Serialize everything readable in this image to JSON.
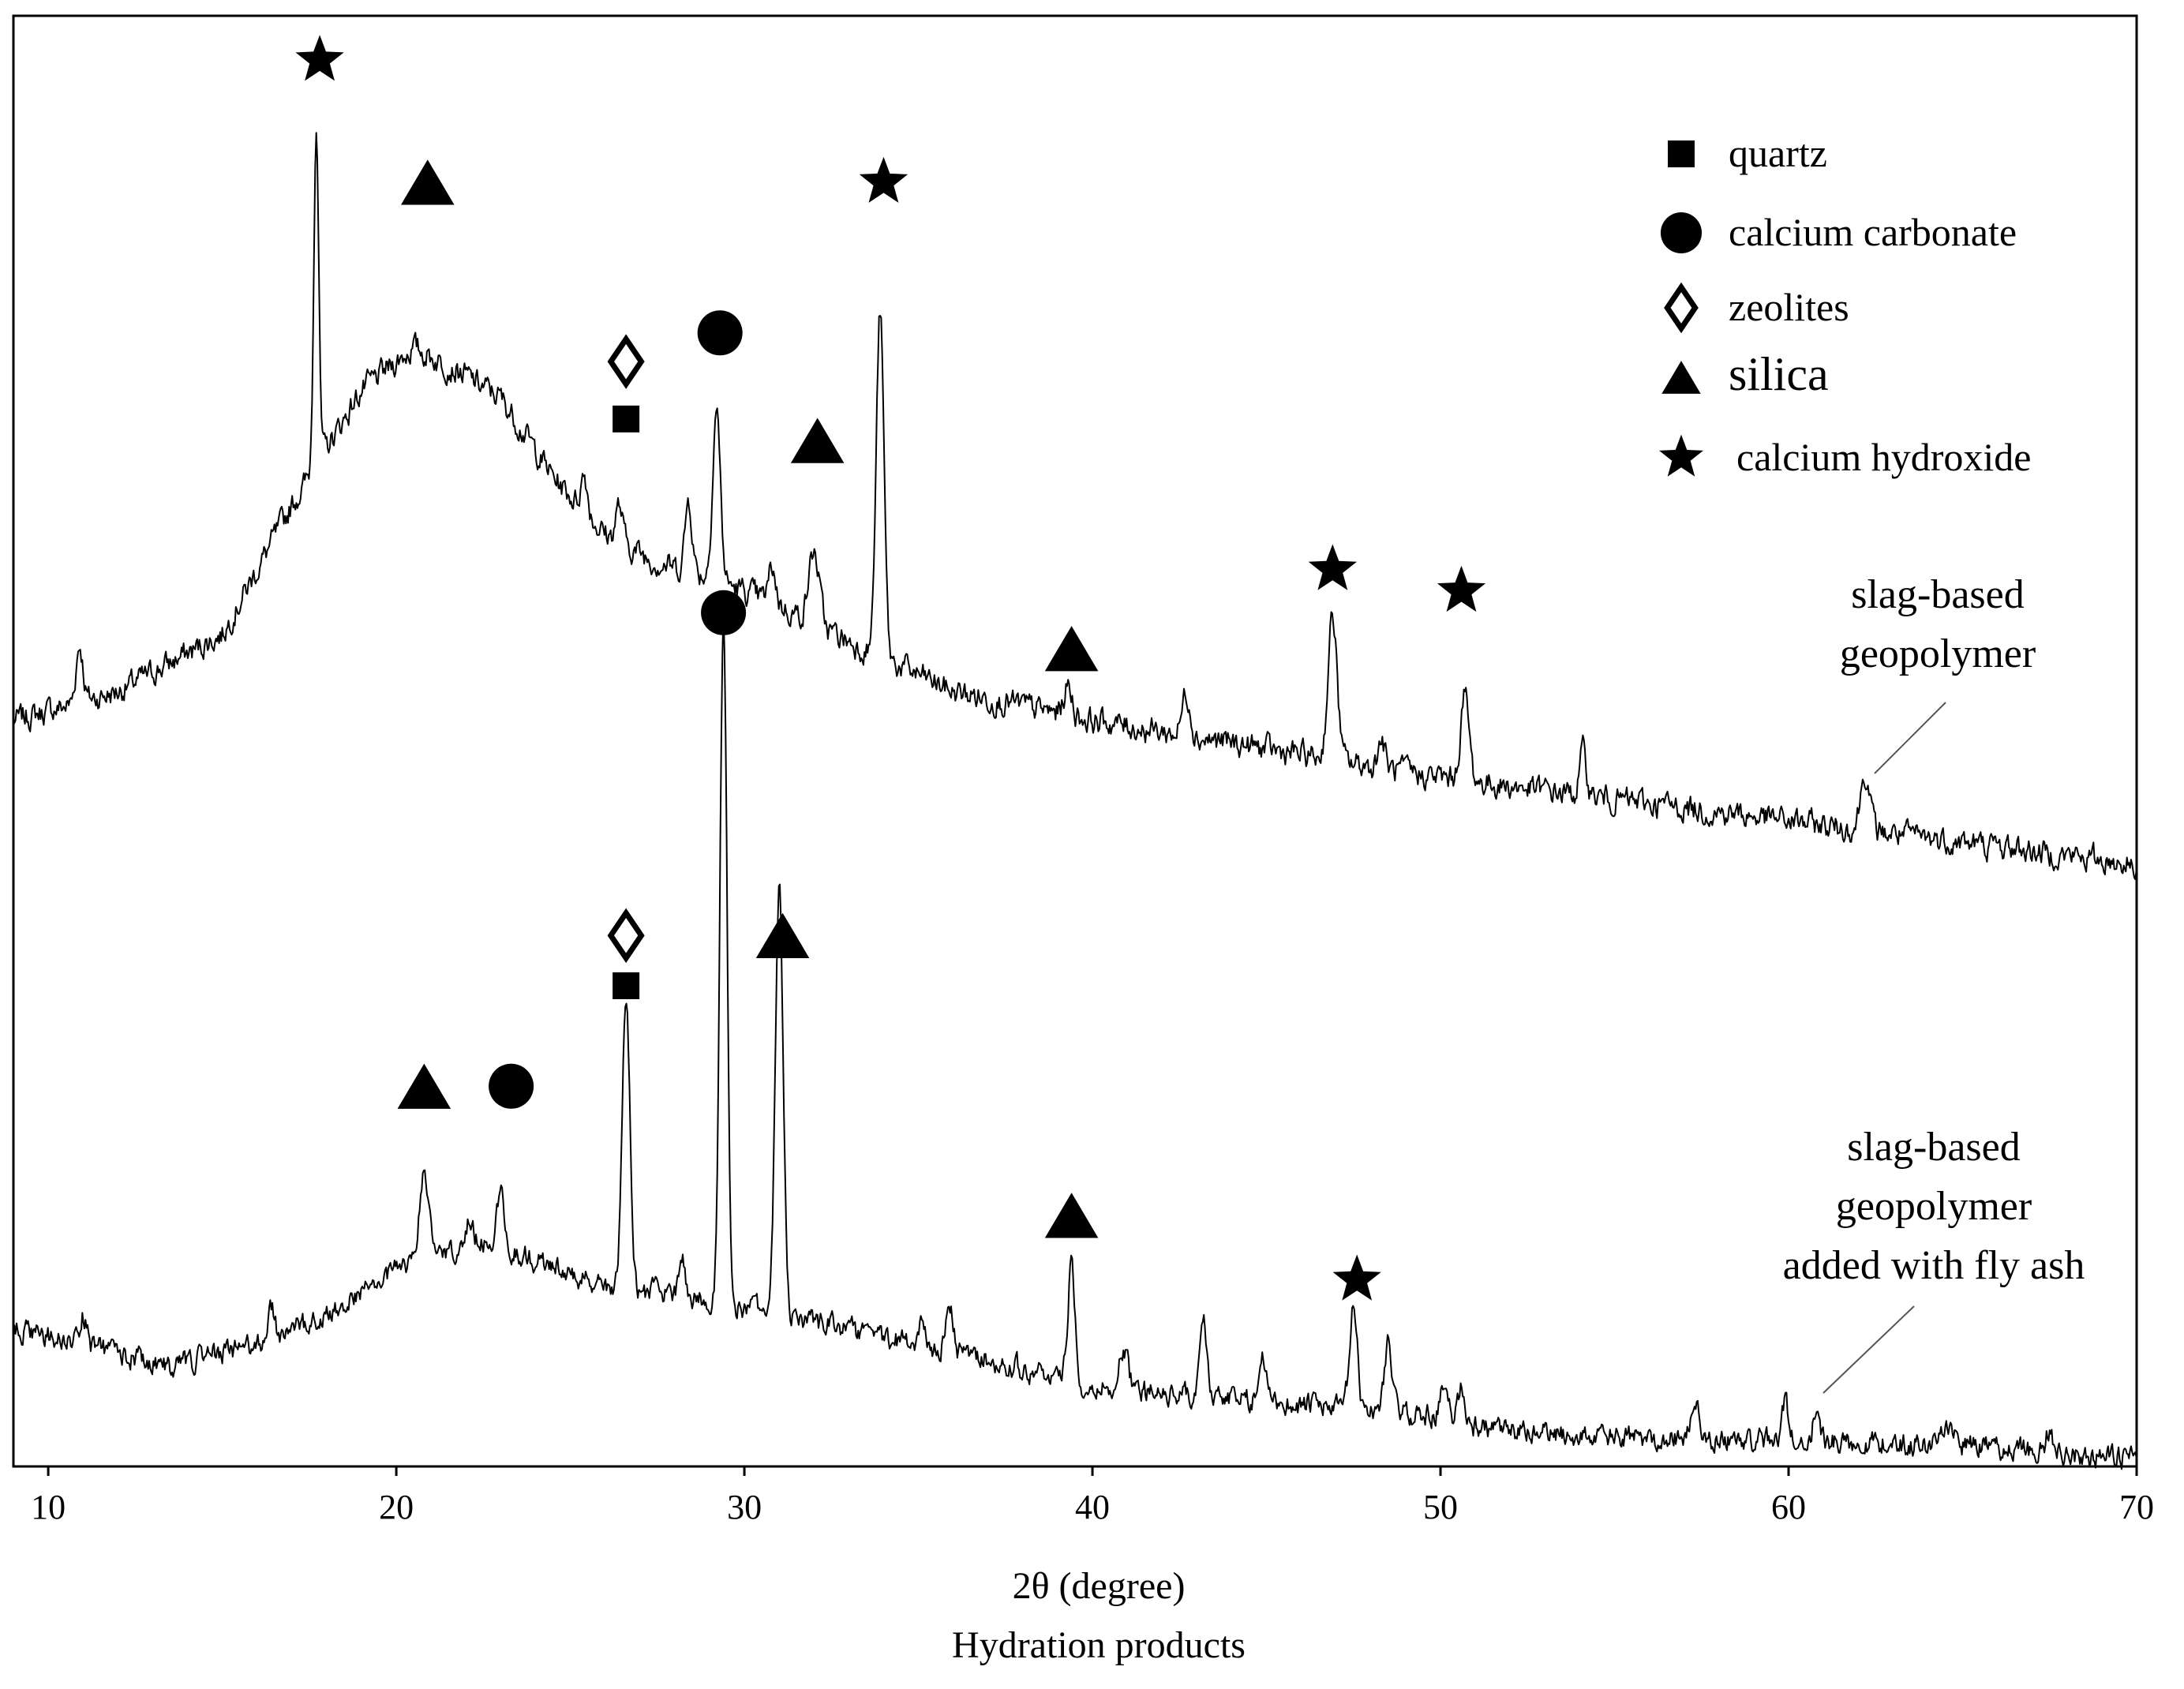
{
  "chart_data": {
    "type": "line",
    "title": "",
    "xlabel": "2θ (degree)",
    "subtitle": "Hydration products",
    "ylabel": "",
    "xlim": [
      9,
      70
    ],
    "ylim": [
      0,
      100
    ],
    "x_ticks": [
      10,
      20,
      30,
      40,
      50,
      60,
      70
    ],
    "grid": false,
    "legend_position": "top-right",
    "legend": [
      {
        "marker": "square",
        "label": "quartz"
      },
      {
        "marker": "circle",
        "label": "calcium carbonate"
      },
      {
        "marker": "diamond-open",
        "label": "zeolites"
      },
      {
        "marker": "triangle",
        "label": "silica"
      },
      {
        "marker": "star",
        "label": "calcium hydroxide"
      }
    ],
    "series": [
      {
        "name": "slag-based geopolymer",
        "label_lines": [
          "slag-based",
          "geopolymer"
        ],
        "baseline": [
          [
            9,
            52
          ],
          [
            12,
            54
          ],
          [
            15,
            58
          ],
          [
            17,
            67
          ],
          [
            19,
            75
          ],
          [
            20.5,
            78
          ],
          [
            22,
            76
          ],
          [
            23,
            74.5
          ],
          [
            24.5,
            69
          ],
          [
            26,
            65
          ],
          [
            27.5,
            63
          ],
          [
            29,
            62
          ],
          [
            31,
            60
          ],
          [
            33,
            57.5
          ],
          [
            36,
            54
          ],
          [
            40,
            52
          ],
          [
            45,
            50
          ],
          [
            50,
            48
          ],
          [
            55,
            46.5
          ],
          [
            60,
            45
          ],
          [
            65,
            43.5
          ],
          [
            70,
            42
          ]
        ],
        "peaks": [
          {
            "x": 10.9,
            "height": 4,
            "width": 0.1
          },
          {
            "x": 17.7,
            "height": 24,
            "width": 0.07
          },
          {
            "x": 25.4,
            "height": 2.5,
            "width": 0.1
          },
          {
            "x": 26.4,
            "height": 2.5,
            "width": 0.1
          },
          {
            "x": 28.4,
            "height": 5,
            "width": 0.1
          },
          {
            "x": 29.2,
            "height": 12,
            "width": 0.11
          },
          {
            "x": 30.8,
            "height": 2.5,
            "width": 0.1
          },
          {
            "x": 32.0,
            "height": 5,
            "width": 0.15
          },
          {
            "x": 33.9,
            "height": 24,
            "width": 0.11
          },
          {
            "x": 39.3,
            "height": 2,
            "width": 0.12
          },
          {
            "x": 42.7,
            "height": 3,
            "width": 0.12
          },
          {
            "x": 46.9,
            "height": 10,
            "width": 0.13
          },
          {
            "x": 48.3,
            "height": 2,
            "width": 0.1
          },
          {
            "x": 50.7,
            "height": 6,
            "width": 0.12
          },
          {
            "x": 54.1,
            "height": 3,
            "width": 0.1
          },
          {
            "x": 62.2,
            "height": 4,
            "width": 0.13
          }
        ],
        "noise": 0.9,
        "markers": [
          {
            "x": 17.8,
            "y": 98,
            "symbol": "star"
          },
          {
            "x": 20.9,
            "y": 89.5,
            "symbol": "triangle"
          },
          {
            "x": 26.6,
            "y": 77,
            "symbol": "diamond-open"
          },
          {
            "x": 26.6,
            "y": 73,
            "symbol": "square"
          },
          {
            "x": 29.3,
            "y": 79,
            "symbol": "circle"
          },
          {
            "x": 32.1,
            "y": 71.5,
            "symbol": "triangle"
          },
          {
            "x": 34.0,
            "y": 89.5,
            "symbol": "star"
          },
          {
            "x": 39.4,
            "y": 57,
            "symbol": "triangle"
          },
          {
            "x": 46.9,
            "y": 62.5,
            "symbol": "star"
          },
          {
            "x": 50.6,
            "y": 61,
            "symbol": "star"
          }
        ]
      },
      {
        "name": "slag-based geopolymer added with fly ash",
        "label_lines": [
          "slag-based",
          "geopolymer",
          "added with fly ash"
        ],
        "baseline": [
          [
            9,
            9.5
          ],
          [
            11,
            8.5
          ],
          [
            13.5,
            7
          ],
          [
            16,
            8.5
          ],
          [
            18,
            10.5
          ],
          [
            19.5,
            13
          ],
          [
            21,
            15
          ],
          [
            22.5,
            15.5
          ],
          [
            24.5,
            14
          ],
          [
            26,
            12.5
          ],
          [
            28,
            12
          ],
          [
            30,
            11
          ],
          [
            33,
            9.5
          ],
          [
            37,
            7.5
          ],
          [
            40,
            5.5
          ],
          [
            45,
            4.5
          ],
          [
            50,
            3.5
          ],
          [
            51.5,
            2.5
          ],
          [
            55,
            2
          ],
          [
            60,
            1.8
          ],
          [
            65,
            1.5
          ],
          [
            70,
            0.5
          ]
        ],
        "peaks": [
          {
            "x": 11.0,
            "height": 2,
            "width": 0.1
          },
          {
            "x": 16.4,
            "height": 2,
            "width": 0.1
          },
          {
            "x": 20.8,
            "height": 5.5,
            "width": 0.13
          },
          {
            "x": 22.1,
            "height": 2,
            "width": 0.12
          },
          {
            "x": 23.0,
            "height": 4,
            "width": 0.11
          },
          {
            "x": 26.6,
            "height": 21,
            "width": 0.11
          },
          {
            "x": 28.2,
            "height": 3,
            "width": 0.08
          },
          {
            "x": 29.4,
            "height": 48,
            "width": 0.1
          },
          {
            "x": 31.0,
            "height": 30,
            "width": 0.11
          },
          {
            "x": 35.1,
            "height": 2,
            "width": 0.1
          },
          {
            "x": 35.9,
            "height": 3,
            "width": 0.1
          },
          {
            "x": 39.4,
            "height": 8.5,
            "width": 0.1
          },
          {
            "x": 40.9,
            "height": 3,
            "width": 0.12
          },
          {
            "x": 43.2,
            "height": 5,
            "width": 0.1
          },
          {
            "x": 44.9,
            "height": 3,
            "width": 0.11
          },
          {
            "x": 47.5,
            "height": 7,
            "width": 0.11
          },
          {
            "x": 48.5,
            "height": 5,
            "width": 0.11
          },
          {
            "x": 50.1,
            "height": 2,
            "width": 0.1
          },
          {
            "x": 50.6,
            "height": 2.5,
            "width": 0.1
          },
          {
            "x": 57.3,
            "height": 3,
            "width": 0.1
          },
          {
            "x": 59.9,
            "height": 2.5,
            "width": 0.1
          },
          {
            "x": 60.8,
            "height": 2,
            "width": 0.1
          },
          {
            "x": 64.6,
            "height": 1.5,
            "width": 0.15
          },
          {
            "x": 67.5,
            "height": 1.5,
            "width": 0.1
          }
        ],
        "noise": 0.8,
        "markers": [
          {
            "x": 29.4,
            "y": 59.5,
            "symbol": "circle"
          },
          {
            "x": 26.6,
            "y": 37,
            "symbol": "diamond-open"
          },
          {
            "x": 26.6,
            "y": 33.5,
            "symbol": "square"
          },
          {
            "x": 31.1,
            "y": 37,
            "symbol": "triangle"
          },
          {
            "x": 20.8,
            "y": 26.5,
            "symbol": "triangle"
          },
          {
            "x": 23.3,
            "y": 26.5,
            "symbol": "circle"
          },
          {
            "x": 39.4,
            "y": 17.5,
            "symbol": "triangle"
          },
          {
            "x": 47.6,
            "y": 13,
            "symbol": "star"
          }
        ]
      }
    ]
  }
}
